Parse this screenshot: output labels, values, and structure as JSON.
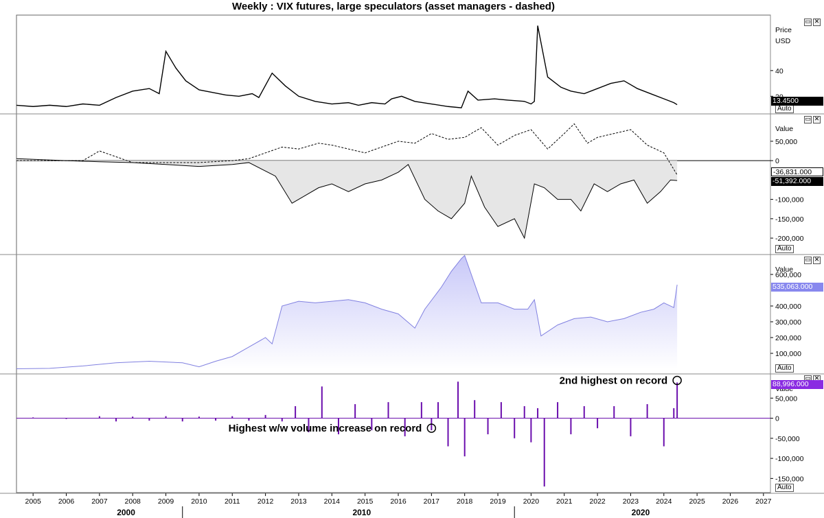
{
  "title": "Weekly : VIX futures, large speculators (asset managers - dashed)",
  "panes": [
    {
      "id": "price",
      "axis_title_1": "Price",
      "axis_title_2": "USD",
      "ticks": [
        "20",
        "40"
      ],
      "last_value": "13.4500",
      "auto_label": "Auto",
      "controls": [
        "restore-icon",
        "close-icon"
      ]
    },
    {
      "id": "net-positioning",
      "axis_title_1": "Value",
      "ticks": [
        "50,000",
        "0",
        "-100,000",
        "-150,000",
        "-200,000"
      ],
      "last_value_asset_managers": "-36,831.000",
      "last_value_large_speculators": "-51,392.000",
      "auto_label": "Auto",
      "controls": [
        "restore-icon",
        "close-icon"
      ]
    },
    {
      "id": "open-interest",
      "axis_title_1": "Value",
      "ticks": [
        "600,000",
        "400,000",
        "300,000",
        "200,000",
        "100,000"
      ],
      "last_value": "535,063.000",
      "auto_label": "Auto",
      "controls": [
        "restore-icon",
        "close-icon"
      ]
    },
    {
      "id": "volume-change",
      "axis_title_1": "Value",
      "ticks": [
        "50,000",
        "0",
        "-50,000",
        "-100,000",
        "-150,000"
      ],
      "last_value": "88,996.000",
      "auto_label": "Auto",
      "controls": [
        "restore-icon",
        "close-icon"
      ]
    }
  ],
  "annotations": {
    "first": "Highest w/w volume increase on record",
    "second": "2nd highest on record"
  },
  "x_axis": {
    "years": [
      "2005",
      "2006",
      "2007",
      "2008",
      "2009",
      "2010",
      "2011",
      "2012",
      "2013",
      "2014",
      "2015",
      "2016",
      "2017",
      "2018",
      "2019",
      "2020",
      "2021",
      "2022",
      "2023",
      "2024",
      "2025",
      "2026",
      "2027"
    ],
    "decades": [
      "2000",
      "2010",
      "2020"
    ]
  },
  "colors": {
    "price_line": "#000000",
    "net_fill": "#e6e6e6",
    "open_interest_line": "#8080e0",
    "open_interest_fill_top": "#c8c8f8",
    "volume_bars": "#6a0dad",
    "badge_dark": "#000000",
    "badge_blue": "#8888ee",
    "badge_purple": "#8a2be2"
  },
  "chart_data": [
    {
      "type": "line",
      "pane": "price",
      "series": [
        {
          "x": [
            2004.5,
            2005.0,
            2005.5,
            2006.0,
            2006.5,
            2007.0,
            2007.5,
            2008.0,
            2008.5,
            2008.8,
            2009.0,
            2009.3,
            2009.6,
            2010.0,
            2010.4,
            2010.8,
            2011.2,
            2011.6,
            2011.8,
            2012.2,
            2012.6,
            2013.0,
            2013.5,
            2014.0,
            2014.5,
            2014.8,
            2015.2,
            2015.6,
            2015.8,
            2016.1,
            2016.5,
            2017.0,
            2017.5,
            2017.9,
            2018.1,
            2018.4,
            2018.9,
            2019.3,
            2019.8,
            2020.0,
            2020.1,
            2020.2,
            2020.5,
            2020.9,
            2021.2,
            2021.6,
            2022.0,
            2022.4,
            2022.8,
            2023.2,
            2023.6,
            2024.0,
            2024.3,
            2024.4
          ],
          "values": [
            13,
            12,
            13,
            12,
            14,
            13,
            19,
            24,
            26,
            22,
            55,
            42,
            32,
            25,
            23,
            21,
            20,
            22,
            19,
            38,
            28,
            20,
            16,
            14,
            15,
            13,
            15,
            14,
            18,
            20,
            16,
            14,
            12,
            11,
            24,
            17,
            18,
            17,
            16,
            14,
            16,
            75,
            35,
            27,
            24,
            22,
            26,
            30,
            32,
            26,
            22,
            18,
            15,
            13.45
          ]
        }
      ],
      "yticks": [
        20,
        40
      ],
      "ylim": [
        10,
        80
      ]
    },
    {
      "type": "area",
      "pane": "net-positioning",
      "series": [
        {
          "name": "large speculators",
          "x": [
            2004.5,
            2006.0,
            2007.0,
            2008.0,
            2009.0,
            2010.0,
            2011.0,
            2011.5,
            2012.3,
            2012.8,
            2013.2,
            2013.6,
            2014.0,
            2014.5,
            2015.0,
            2015.5,
            2016.0,
            2016.3,
            2016.8,
            2017.2,
            2017.6,
            2018.0,
            2018.2,
            2018.6,
            2019.0,
            2019.5,
            2019.8,
            2020.1,
            2020.4,
            2020.8,
            2021.2,
            2021.5,
            2021.9,
            2022.3,
            2022.7,
            2023.1,
            2023.5,
            2023.9,
            2024.2,
            2024.4
          ],
          "values": [
            5,
            0,
            -3,
            -5,
            -10,
            -15,
            -10,
            -5,
            -40,
            -110,
            -90,
            -70,
            -60,
            -80,
            -60,
            -50,
            -30,
            -10,
            -100,
            -130,
            -150,
            -110,
            -40,
            -120,
            -170,
            -150,
            -200,
            -60,
            -70,
            -100,
            -100,
            -130,
            -60,
            -80,
            -60,
            -50,
            -110,
            -80,
            -50,
            -51.392
          ]
        },
        {
          "name": "asset managers",
          "x": [
            2004.5,
            2006.5,
            2007.0,
            2008.0,
            2009.0,
            2010.0,
            2011.0,
            2011.5,
            2012.0,
            2012.5,
            2013.0,
            2013.6,
            2014.0,
            2014.5,
            2015.0,
            2015.5,
            2016.0,
            2016.5,
            2017.0,
            2017.5,
            2018.0,
            2018.5,
            2019.0,
            2019.5,
            2020.0,
            2020.5,
            2021.0,
            2021.3,
            2021.7,
            2022.0,
            2022.5,
            2023.0,
            2023.5,
            2024.0,
            2024.4
          ],
          "values": [
            0,
            0,
            25,
            -5,
            -5,
            -5,
            0,
            5,
            20,
            35,
            30,
            45,
            40,
            30,
            20,
            35,
            50,
            45,
            70,
            55,
            60,
            85,
            40,
            65,
            80,
            30,
            70,
            95,
            45,
            60,
            70,
            80,
            40,
            20,
            -36.831
          ]
        }
      ],
      "yticks": [
        50000,
        0,
        -100000,
        -150000,
        -200000
      ],
      "ylim": [
        -230000,
        110000
      ]
    },
    {
      "type": "area",
      "pane": "open-interest",
      "series": [
        {
          "x": [
            2004.5,
            2005.5,
            2006.5,
            2007.5,
            2008.5,
            2009.5,
            2010.0,
            2010.5,
            2011.0,
            2011.5,
            2012.0,
            2012.2,
            2012.5,
            2013.0,
            2013.5,
            2014.0,
            2014.5,
            2015.0,
            2015.5,
            2016.0,
            2016.5,
            2016.8,
            2017.3,
            2017.6,
            2017.9,
            2018.0,
            2018.5,
            2019.0,
            2019.5,
            2019.9,
            2020.1,
            2020.3,
            2020.8,
            2021.3,
            2021.8,
            2022.3,
            2022.8,
            2023.3,
            2023.7,
            2024.0,
            2024.3,
            2024.4
          ],
          "values": [
            2000,
            5000,
            20000,
            40000,
            50000,
            40000,
            15000,
            50000,
            80000,
            140000,
            200000,
            160000,
            400000,
            430000,
            420000,
            430000,
            440000,
            420000,
            380000,
            350000,
            260000,
            380000,
            520000,
            620000,
            700000,
            720000,
            420000,
            420000,
            380000,
            380000,
            440000,
            210000,
            280000,
            320000,
            330000,
            300000,
            320000,
            360000,
            380000,
            420000,
            390000,
            535063
          ]
        }
      ],
      "yticks": [
        600000,
        400000,
        300000,
        200000,
        100000
      ],
      "ylim": [
        0,
        700000
      ]
    },
    {
      "type": "bar",
      "pane": "volume-change",
      "series": [
        {
          "x": [
            2005.0,
            2006.0,
            2007.0,
            2007.5,
            2008.0,
            2008.5,
            2009.0,
            2009.5,
            2010.0,
            2010.5,
            2011.0,
            2011.5,
            2012.0,
            2012.5,
            2012.9,
            2013.3,
            2013.7,
            2014.2,
            2014.7,
            2015.2,
            2015.7,
            2016.2,
            2016.7,
            2017.0,
            2017.2,
            2017.5,
            2017.8,
            2018.0,
            2018.3,
            2018.7,
            2019.1,
            2019.5,
            2019.8,
            2020.0,
            2020.2,
            2020.4,
            2020.8,
            2021.2,
            2021.6,
            2022.0,
            2022.5,
            2023.0,
            2023.5,
            2024.0,
            2024.3,
            2024.4
          ],
          "values": [
            2000,
            -2000,
            5000,
            -8000,
            4000,
            -6000,
            5000,
            -8000,
            4000,
            -6000,
            5000,
            -6000,
            8000,
            -8000,
            30000,
            -35000,
            79000,
            -40000,
            35000,
            -30000,
            40000,
            -45000,
            40000,
            -30000,
            40000,
            -70000,
            91000,
            -95000,
            45000,
            -40000,
            40000,
            -50000,
            30000,
            -60000,
            25000,
            -170000,
            40000,
            -40000,
            30000,
            -25000,
            30000,
            -45000,
            35000,
            -70000,
            25000,
            88996
          ]
        }
      ],
      "yticks": [
        50000,
        0,
        -50000,
        -100000,
        -150000
      ],
      "ylim": [
        -175000,
        100000
      ]
    }
  ]
}
